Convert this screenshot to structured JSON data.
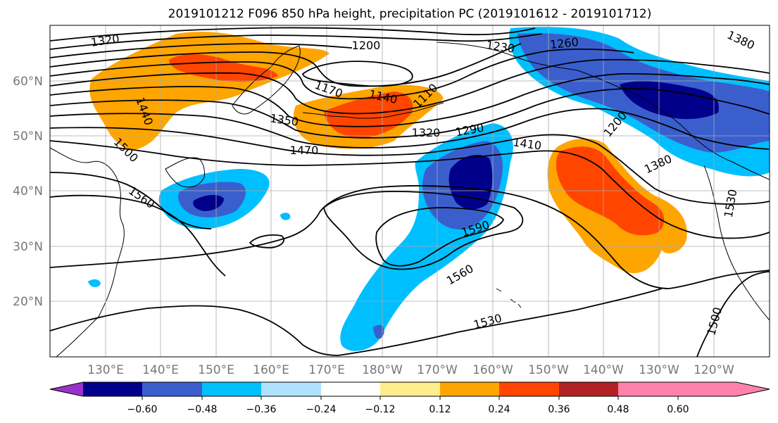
{
  "title": "2019101212 F096 850 hPa height, precipitation PC (2019101612 - 2019101712)",
  "map": {
    "lat_labels": [
      "60°N",
      "50°N",
      "40°N",
      "30°N",
      "20°N"
    ],
    "lon_labels": [
      "130°E",
      "140°E",
      "150°E",
      "160°E",
      "170°E",
      "180°W",
      "170°W",
      "160°W",
      "150°W",
      "140°W",
      "130°W",
      "120°W"
    ],
    "contour_labels": [
      "1320",
      "1200",
      "1230",
      "1260",
      "1380",
      "1170",
      "1140",
      "1110",
      "1410",
      "1350",
      "1320",
      "1290",
      "1200",
      "1470",
      "1380",
      "1500",
      "1560",
      "1590",
      "1560",
      "1530",
      "1530",
      "1500",
      "1440"
    ]
  },
  "colorbar": {
    "colors": [
      "#9932cc",
      "#00008b",
      "#3a5fcd",
      "#00bfff",
      "#b0e2ff",
      "#ffffff",
      "#ffec8b",
      "#ffa500",
      "#ff4500",
      "#b22222",
      "#ff82ab"
    ],
    "tick_labels": [
      "−0.60",
      "−0.48",
      "−0.36",
      "−0.24",
      "−0.12",
      "0.12",
      "0.24",
      "0.36",
      "0.48",
      "0.60"
    ]
  }
}
